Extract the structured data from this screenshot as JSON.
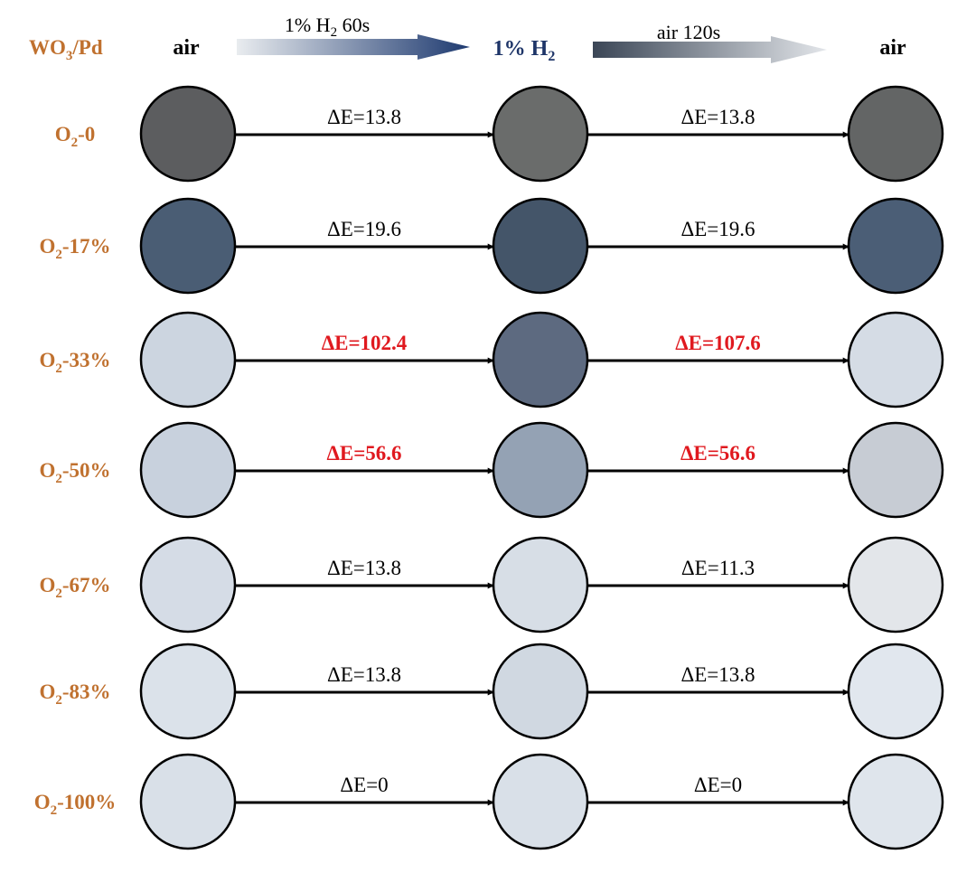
{
  "header": {
    "material": {
      "main": "WO",
      "sub1": "3",
      "rest": "/Pd"
    },
    "col_air_start": "air",
    "col_h2": {
      "main": "1% H",
      "sub": "2"
    },
    "col_air_end": "air",
    "arrow1": {
      "pre": "1% H",
      "sub": "2",
      "post": " 60s"
    },
    "arrow2": "air 120s"
  },
  "rows": [
    {
      "label": {
        "pre": "O",
        "sub": "2",
        "post": "-0"
      },
      "dE1": "ΔE=13.8",
      "dE2": "ΔE=13.8",
      "highlight": false,
      "colors": [
        "#5c5d5f",
        "#6a6c6b",
        "#636565"
      ]
    },
    {
      "label": {
        "pre": "O",
        "sub": "2",
        "post": "-17%"
      },
      "dE1": "ΔE=19.6",
      "dE2": "ΔE=19.6",
      "highlight": false,
      "colors": [
        "#4a5d74",
        "#445569",
        "#4b5e76"
      ]
    },
    {
      "label": {
        "pre": "O",
        "sub": "2",
        "post": "-33%"
      },
      "dE1": "ΔE=102.4",
      "dE2": "ΔE=107.6",
      "highlight": true,
      "colors": [
        "#ccd5e0",
        "#5d6a80",
        "#d5dce5"
      ]
    },
    {
      "label": {
        "pre": "O",
        "sub": "2",
        "post": "-50%"
      },
      "dE1": "ΔE=56.6",
      "dE2": "ΔE=56.6",
      "highlight": true,
      "colors": [
        "#c8d1dd",
        "#94a2b4",
        "#c7ccd4"
      ]
    },
    {
      "label": {
        "pre": "O",
        "sub": "2",
        "post": "-67%"
      },
      "dE1": "ΔE=13.8",
      "dE2": "ΔE=11.3",
      "highlight": false,
      "colors": [
        "#d5dce6",
        "#d7dee6",
        "#e3e6ea"
      ]
    },
    {
      "label": {
        "pre": "O",
        "sub": "2",
        "post": "-83%"
      },
      "dE1": "ΔE=13.8",
      "dE2": "ΔE=13.8",
      "highlight": false,
      "colors": [
        "#dbe2ea",
        "#d0d8e1",
        "#e1e7ee"
      ]
    },
    {
      "label": {
        "pre": "O",
        "sub": "2",
        "post": "-100%"
      },
      "dE1": "ΔE=0",
      "dE2": "ΔE=0",
      "highlight": false,
      "colors": [
        "#d9e0e8",
        "#d9e0e8",
        "#dfe5ec"
      ]
    }
  ]
}
